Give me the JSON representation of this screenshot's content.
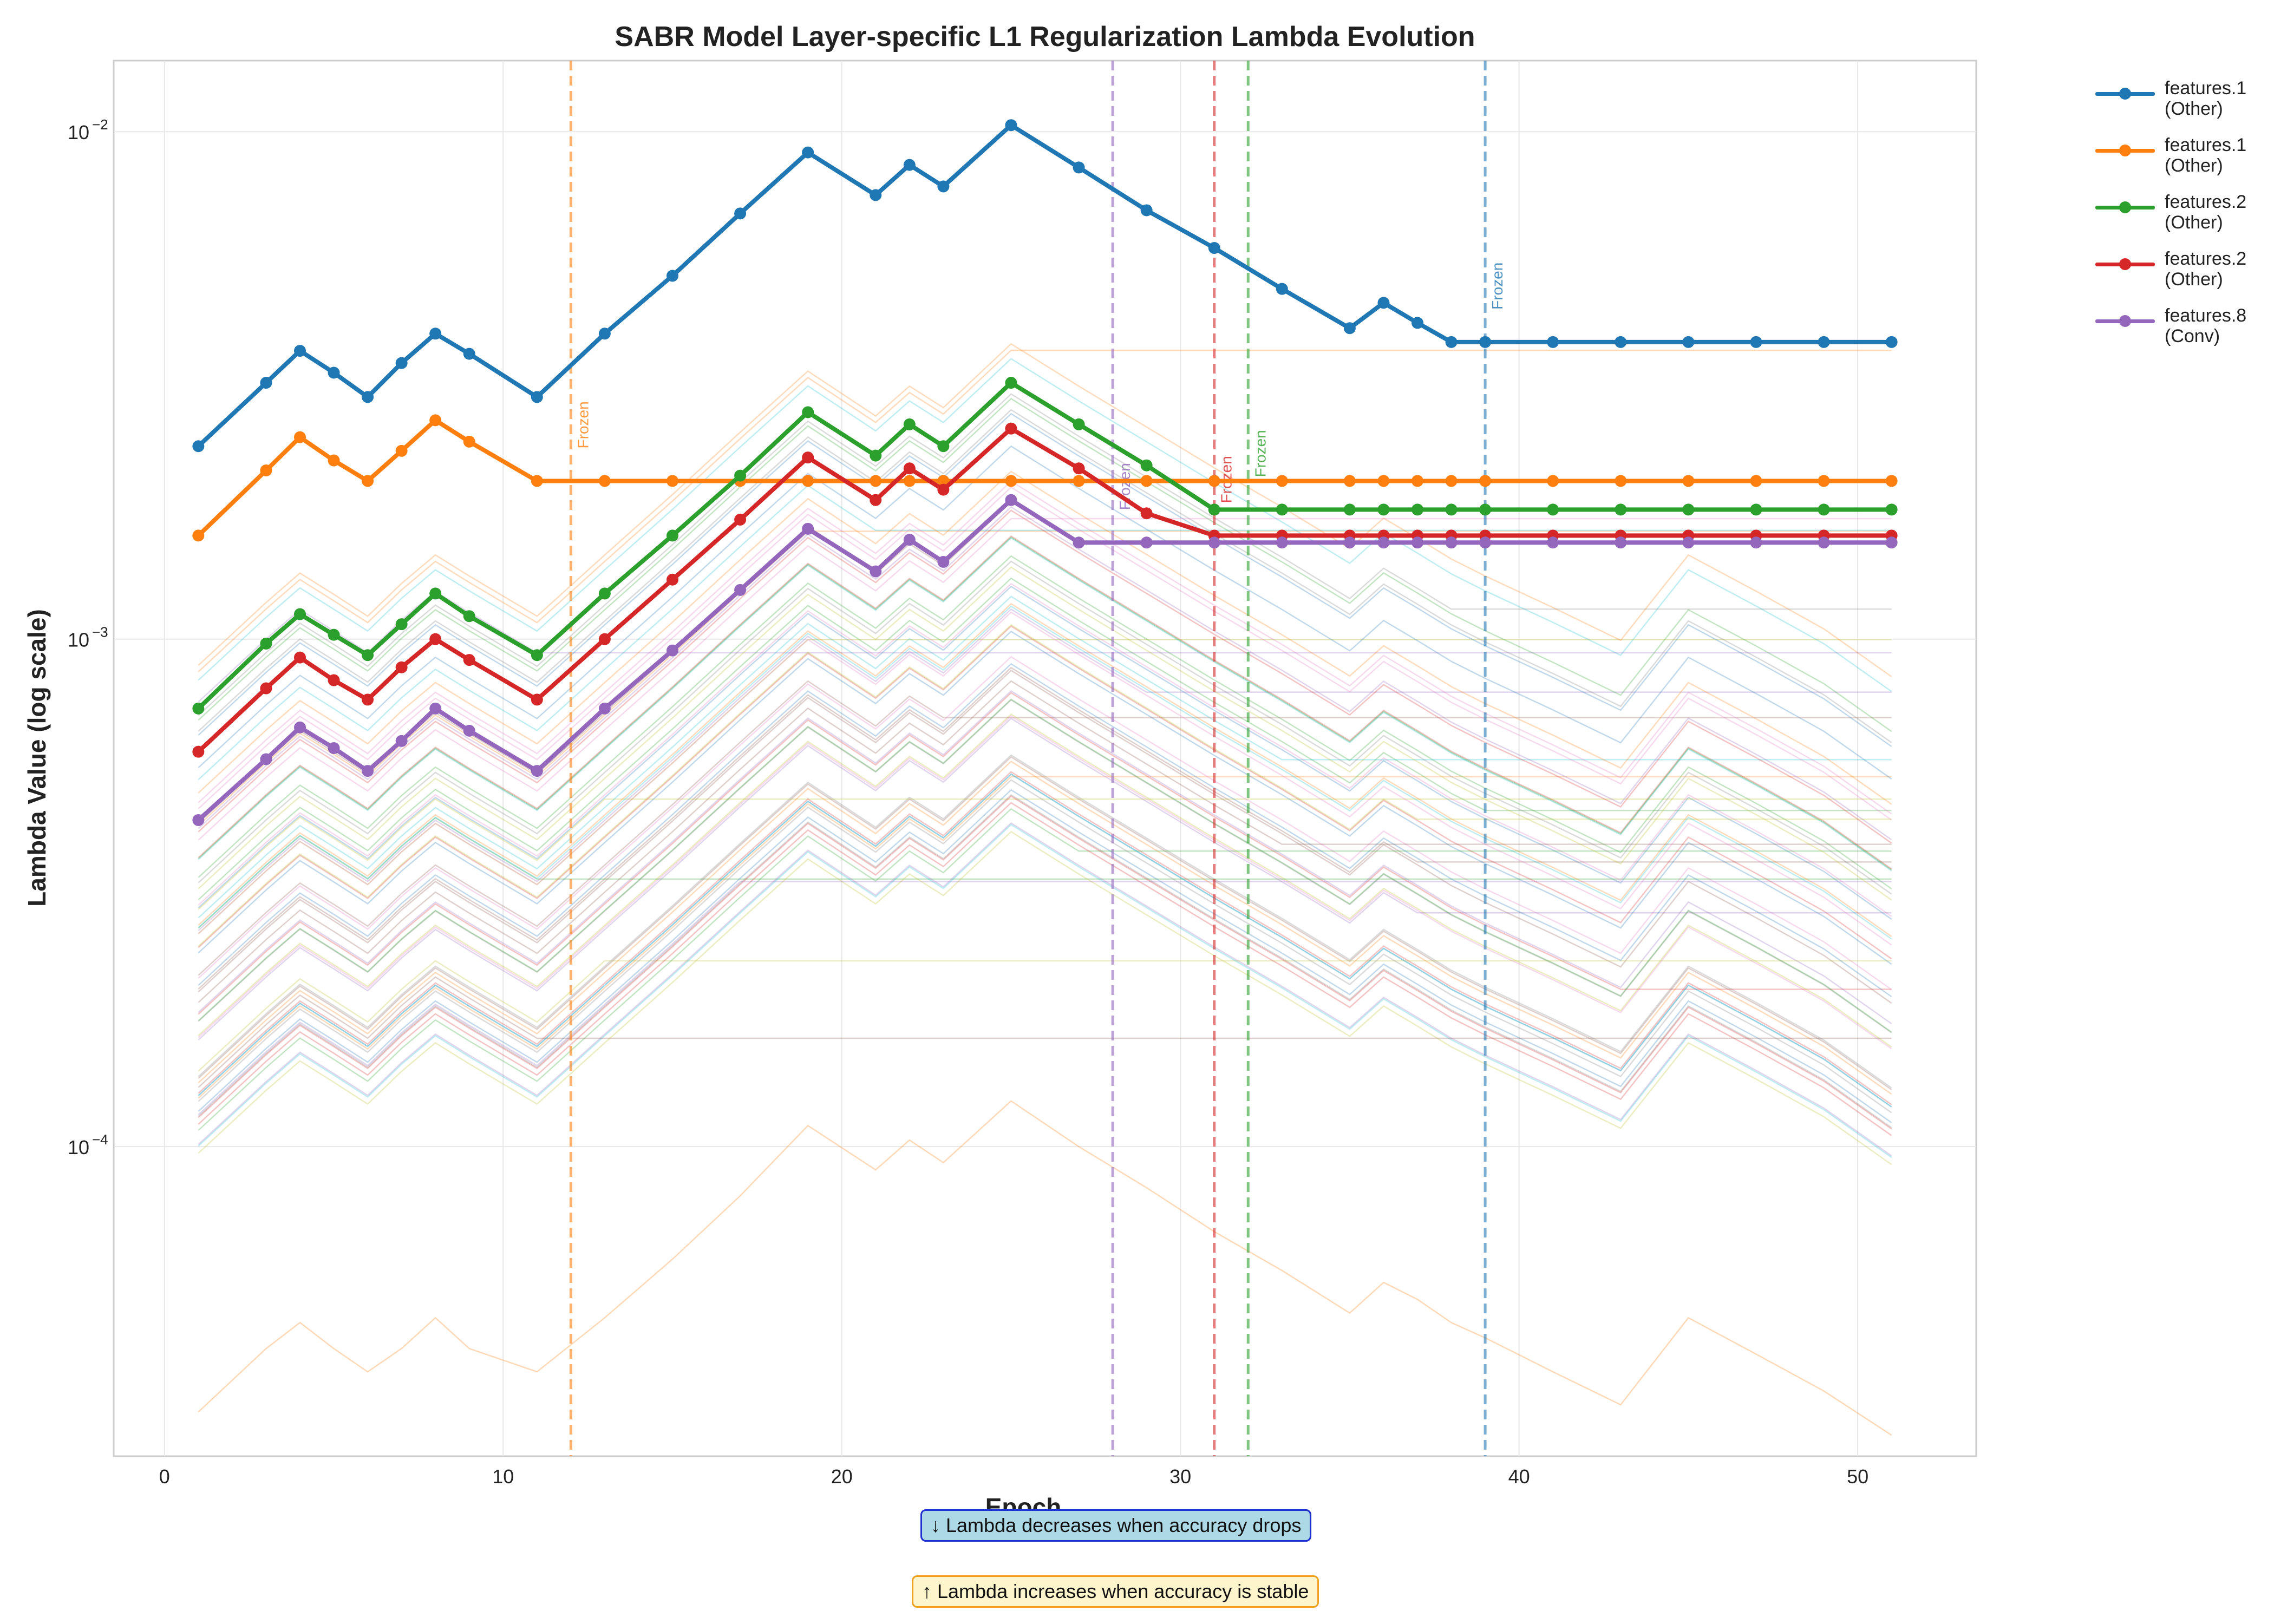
{
  "chart_data": {
    "type": "line",
    "title": "SABR Model Layer-specific L1 Regularization Lambda Evolution",
    "xlabel": "Epoch",
    "ylabel": "Lambda Value (log scale)",
    "xlim": [
      -1.5,
      53.5
    ],
    "ylim_log10": [
      -4.61,
      -1.86
    ],
    "y_scale": "log",
    "x_ticks": [
      0,
      10,
      20,
      30,
      40,
      50
    ],
    "y_ticks": [
      {
        "value": 0.0001,
        "base": "10",
        "exp": "−4"
      },
      {
        "value": 0.001,
        "base": "10",
        "exp": "−3"
      },
      {
        "value": 0.01,
        "base": "10",
        "exp": "−2"
      }
    ],
    "grid": true,
    "legend_position": "outside-right",
    "epochs": [
      1,
      3,
      4,
      5,
      6,
      7,
      8,
      9,
      11,
      13,
      15,
      17,
      19,
      21,
      22,
      23,
      25,
      27,
      29,
      31,
      33,
      35,
      36,
      37,
      38,
      39,
      41,
      43,
      45,
      47,
      49,
      51
    ],
    "series": [
      {
        "name": "features.1\n(Other)",
        "color": "#1f77b4",
        "frozen_epoch": 39,
        "values": [
          0.0024,
          0.0032,
          0.0037,
          0.00335,
          0.003,
          0.0035,
          0.004,
          0.00365,
          0.003,
          0.004,
          0.0052,
          0.0069,
          0.0091,
          0.0075,
          0.0086,
          0.0078,
          0.0103,
          0.0085,
          0.007,
          0.0059,
          0.0049,
          0.0041,
          0.0046,
          0.0042,
          0.00385,
          0.00385,
          0.00385,
          0.00385,
          0.00385,
          0.00385,
          0.00385,
          0.00385
        ]
      },
      {
        "name": "features.1\n(Other)",
        "color": "#ff7f0e",
        "frozen_epoch": 12,
        "values": [
          0.0016,
          0.00215,
          0.0025,
          0.00225,
          0.00205,
          0.00235,
          0.0027,
          0.00245,
          0.00205,
          0.00205,
          0.00205,
          0.00205,
          0.00205,
          0.00205,
          0.00205,
          0.00205,
          0.00205,
          0.00205,
          0.00205,
          0.00205,
          0.00205,
          0.00205,
          0.00205,
          0.00205,
          0.00205,
          0.00205,
          0.00205,
          0.00205,
          0.00205,
          0.00205,
          0.00205,
          0.00205
        ]
      },
      {
        "name": "features.2\n(Other)",
        "color": "#2ca02c",
        "frozen_epoch": 32,
        "values": [
          0.00073,
          0.00098,
          0.00112,
          0.00102,
          0.00093,
          0.00107,
          0.00123,
          0.00111,
          0.00093,
          0.00123,
          0.0016,
          0.0021,
          0.0028,
          0.0023,
          0.00265,
          0.0024,
          0.0032,
          0.00265,
          0.0022,
          0.0018,
          0.0018,
          0.0018,
          0.0018,
          0.0018,
          0.0018,
          0.0018,
          0.0018,
          0.0018,
          0.0018,
          0.0018,
          0.0018,
          0.0018
        ]
      },
      {
        "name": "features.2\n(Other)",
        "color": "#d62728",
        "frozen_epoch": 31,
        "values": [
          0.0006,
          0.0008,
          0.00092,
          0.00083,
          0.00076,
          0.00088,
          0.001,
          0.00091,
          0.00076,
          0.001,
          0.00131,
          0.00172,
          0.00228,
          0.00188,
          0.00217,
          0.00197,
          0.0026,
          0.00217,
          0.00177,
          0.0016,
          0.0016,
          0.0016,
          0.0016,
          0.0016,
          0.0016,
          0.0016,
          0.0016,
          0.0016,
          0.0016,
          0.0016,
          0.0016,
          0.0016
        ]
      },
      {
        "name": "features.8\n(Conv)",
        "color": "#9467bd",
        "frozen_epoch": 28,
        "values": [
          0.00044,
          0.00058,
          0.00067,
          0.00061,
          0.00055,
          0.00063,
          0.00073,
          0.00066,
          0.00055,
          0.00073,
          0.00095,
          0.00125,
          0.00165,
          0.00136,
          0.00157,
          0.00142,
          0.00188,
          0.00155,
          0.00155,
          0.00155,
          0.00155,
          0.00155,
          0.00155,
          0.00155,
          0.00155,
          0.00155,
          0.00155,
          0.00155,
          0.00155,
          0.00155,
          0.00155,
          0.00155
        ]
      }
    ],
    "frozen_label": "Frozen",
    "annotations": [
      {
        "text": "↓ Lambda decreases when accuracy drops"
      },
      {
        "text": "↑ Lambda increases when accuracy is stable"
      }
    ]
  },
  "legend": {
    "items": [
      {
        "label": "features.1\n(Other)",
        "color": "#1f77b4"
      },
      {
        "label": "features.1\n(Other)",
        "color": "#ff7f0e"
      },
      {
        "label": "features.2\n(Other)",
        "color": "#2ca02c"
      },
      {
        "label": "features.2\n(Other)",
        "color": "#d62728"
      },
      {
        "label": "features.8\n(Conv)",
        "color": "#9467bd"
      }
    ]
  }
}
